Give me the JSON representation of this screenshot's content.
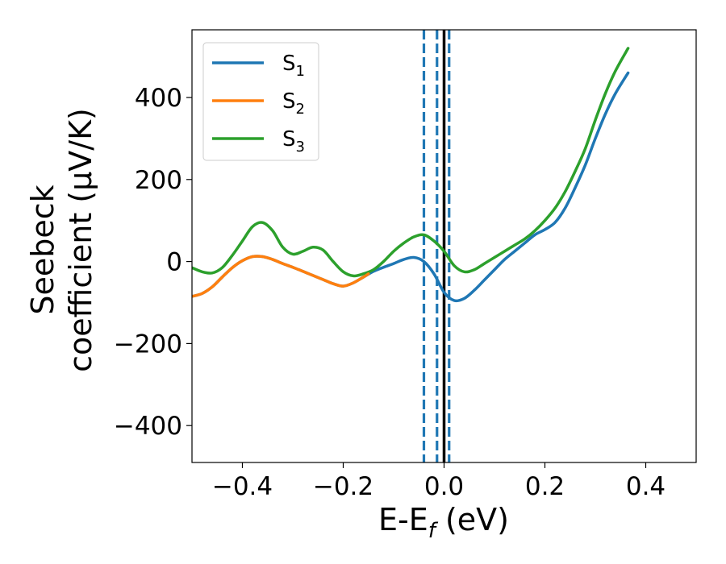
{
  "chart_data": {
    "type": "line",
    "xlabel": "E-E",
    "xlabel_sub": "f",
    "xlabel_unit": " (eV)",
    "ylabel_line1": "Seebeck",
    "ylabel_line2": "coefficient  (μV/K)",
    "xlim": [
      -0.5,
      0.5
    ],
    "ylim": [
      -490,
      565
    ],
    "xticks": [
      -0.4,
      -0.2,
      0.0,
      0.2,
      0.4
    ],
    "xtick_labels": [
      "−0.4",
      "−0.2",
      "0.0",
      "0.2",
      "0.4"
    ],
    "yticks": [
      -400,
      -200,
      0,
      200,
      400
    ],
    "ytick_labels": [
      "−400",
      "−200",
      "0",
      "200",
      "400"
    ],
    "grid": false,
    "legend_position": "top-left",
    "vlines": [
      {
        "x": -0.04,
        "style": "dashed",
        "color": "#1f77b4"
      },
      {
        "x": -0.014,
        "style": "dashed",
        "color": "#1f77b4"
      },
      {
        "x": 0.01,
        "style": "dashed",
        "color": "#1f77b4"
      },
      {
        "x": 0.0,
        "style": "solid",
        "color": "#000000"
      }
    ],
    "series": [
      {
        "name": "S",
        "sub": "1",
        "color": "#1f77b4",
        "x": [
          -0.5,
          -0.48,
          -0.46,
          -0.44,
          -0.42,
          -0.4,
          -0.38,
          -0.36,
          -0.34,
          -0.32,
          -0.3,
          -0.28,
          -0.26,
          -0.24,
          -0.22,
          -0.2,
          -0.18,
          -0.16,
          -0.14,
          -0.12,
          -0.1,
          -0.08,
          -0.06,
          -0.04,
          -0.02,
          0.0,
          0.02,
          0.04,
          0.06,
          0.08,
          0.1,
          0.12,
          0.14,
          0.16,
          0.18,
          0.2,
          0.22,
          0.24,
          0.26,
          0.28,
          0.3,
          0.32,
          0.34,
          0.365
        ],
        "y": [
          -85,
          -78,
          -62,
          -38,
          -15,
          2,
          12,
          12,
          5,
          -5,
          -14,
          -24,
          -34,
          -44,
          -54,
          -60,
          -52,
          -38,
          -24,
          -14,
          -5,
          5,
          10,
          0,
          -30,
          -75,
          -95,
          -90,
          -70,
          -45,
          -20,
          5,
          25,
          45,
          65,
          78,
          95,
          130,
          180,
          235,
          300,
          360,
          410,
          460
        ]
      },
      {
        "name": "S",
        "sub": "2",
        "color": "#ff7f0e",
        "x": [
          -0.5,
          -0.48,
          -0.46,
          -0.44,
          -0.42,
          -0.4,
          -0.38,
          -0.36,
          -0.34,
          -0.32,
          -0.3,
          -0.28,
          -0.26,
          -0.24,
          -0.22,
          -0.2,
          -0.18,
          -0.16,
          -0.15
        ],
        "y": [
          -85,
          -78,
          -62,
          -38,
          -15,
          2,
          12,
          12,
          5,
          -5,
          -14,
          -24,
          -34,
          -44,
          -54,
          -60,
          -52,
          -38,
          -30
        ]
      },
      {
        "name": "S",
        "sub": "3",
        "color": "#2ca02c",
        "x": [
          -0.5,
          -0.48,
          -0.46,
          -0.44,
          -0.42,
          -0.4,
          -0.38,
          -0.36,
          -0.34,
          -0.32,
          -0.3,
          -0.28,
          -0.26,
          -0.24,
          -0.22,
          -0.2,
          -0.18,
          -0.16,
          -0.14,
          -0.12,
          -0.1,
          -0.08,
          -0.06,
          -0.04,
          -0.02,
          0.0,
          0.02,
          0.04,
          0.06,
          0.08,
          0.1,
          0.12,
          0.14,
          0.16,
          0.18,
          0.2,
          0.22,
          0.24,
          0.26,
          0.28,
          0.3,
          0.32,
          0.34,
          0.365
        ],
        "y": [
          -15,
          -25,
          -28,
          -15,
          15,
          50,
          85,
          95,
          75,
          35,
          18,
          25,
          35,
          28,
          0,
          -25,
          -35,
          -30,
          -20,
          0,
          25,
          45,
          60,
          65,
          50,
          25,
          -10,
          -25,
          -20,
          -5,
          10,
          25,
          40,
          55,
          75,
          100,
          130,
          170,
          220,
          275,
          345,
          410,
          465,
          520
        ]
      }
    ]
  }
}
